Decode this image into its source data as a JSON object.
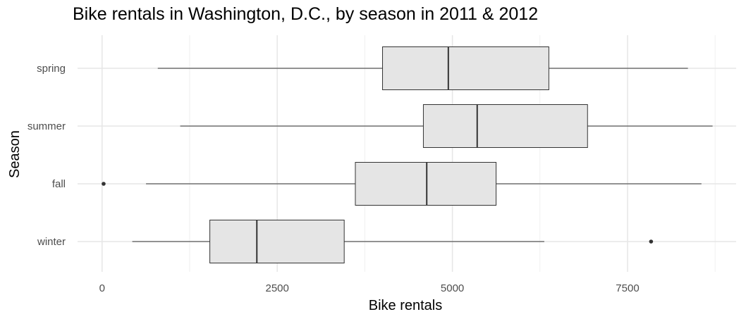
{
  "chart_data": {
    "type": "boxplot",
    "title": "Bike rentals in Washington, D.C., by season in 2011 & 2012",
    "xlabel": "Bike rentals",
    "ylabel": "Season",
    "orientation": "horizontal",
    "xlim": [
      -350,
      9050
    ],
    "xticks": [
      0,
      2500,
      5000,
      7500
    ],
    "xtick_labels": [
      "0",
      "2500",
      "5000",
      "7500"
    ],
    "grid": true,
    "categories": [
      "spring",
      "summer",
      "fall",
      "winter"
    ],
    "boxes": [
      {
        "label": "spring",
        "whisker_low": 795,
        "q1": 4003,
        "median": 4942,
        "q3": 6377,
        "whisker_high": 8362,
        "outliers": []
      },
      {
        "label": "summer",
        "whisker_low": 1115,
        "q1": 4586,
        "median": 5354,
        "q3": 6929,
        "whisker_high": 8714,
        "outliers": []
      },
      {
        "label": "fall",
        "whisker_low": 627,
        "q1": 3615,
        "median": 4634,
        "q3": 5624,
        "whisker_high": 8555,
        "outliers": [
          22
        ]
      },
      {
        "label": "winter",
        "whisker_low": 431,
        "q1": 1538,
        "median": 2209,
        "q3": 3456,
        "whisker_high": 6312,
        "outliers": [
          7836
        ]
      }
    ],
    "box_fill": "#e5e5e5",
    "line_color": "#333333"
  }
}
